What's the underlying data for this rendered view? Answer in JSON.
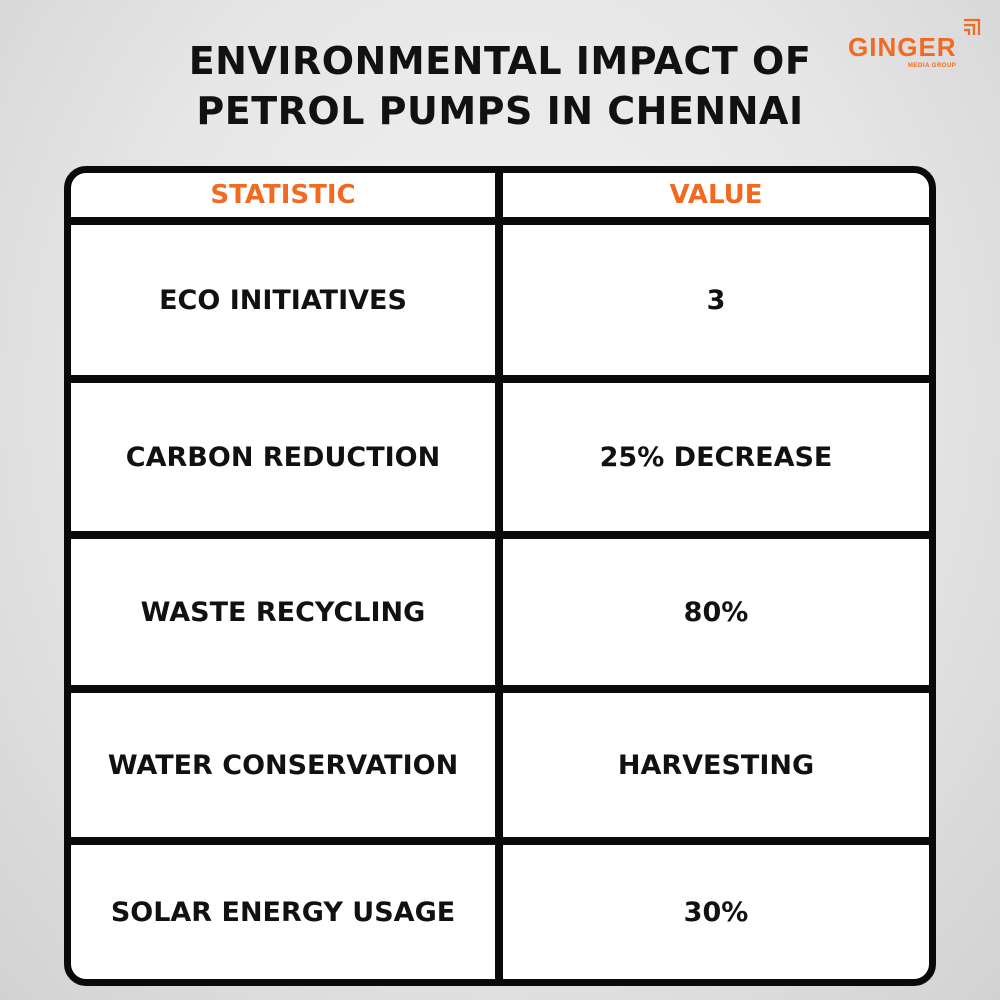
{
  "title": {
    "line1": "ENVIRONMENTAL IMPACT OF",
    "line2": "PETROL PUMPS IN CHENNAI"
  },
  "logo": {
    "name": "GINGER",
    "tagline": "MEDIA GROUP",
    "brand_color": "#f26a21"
  },
  "table": {
    "headers": {
      "statistic": "STATISTIC",
      "value": "VALUE"
    },
    "header_color": "#f26a21",
    "rows": [
      {
        "statistic": "ECO INITIATIVES",
        "value": "3"
      },
      {
        "statistic": "CARBON REDUCTION",
        "value": "25% DECREASE"
      },
      {
        "statistic": "WASTE RECYCLING",
        "value": "80%"
      },
      {
        "statistic": "WATER CONSERVATION",
        "value": "HARVESTING"
      },
      {
        "statistic": "SOLAR ENERGY USAGE",
        "value": "30%"
      }
    ]
  }
}
